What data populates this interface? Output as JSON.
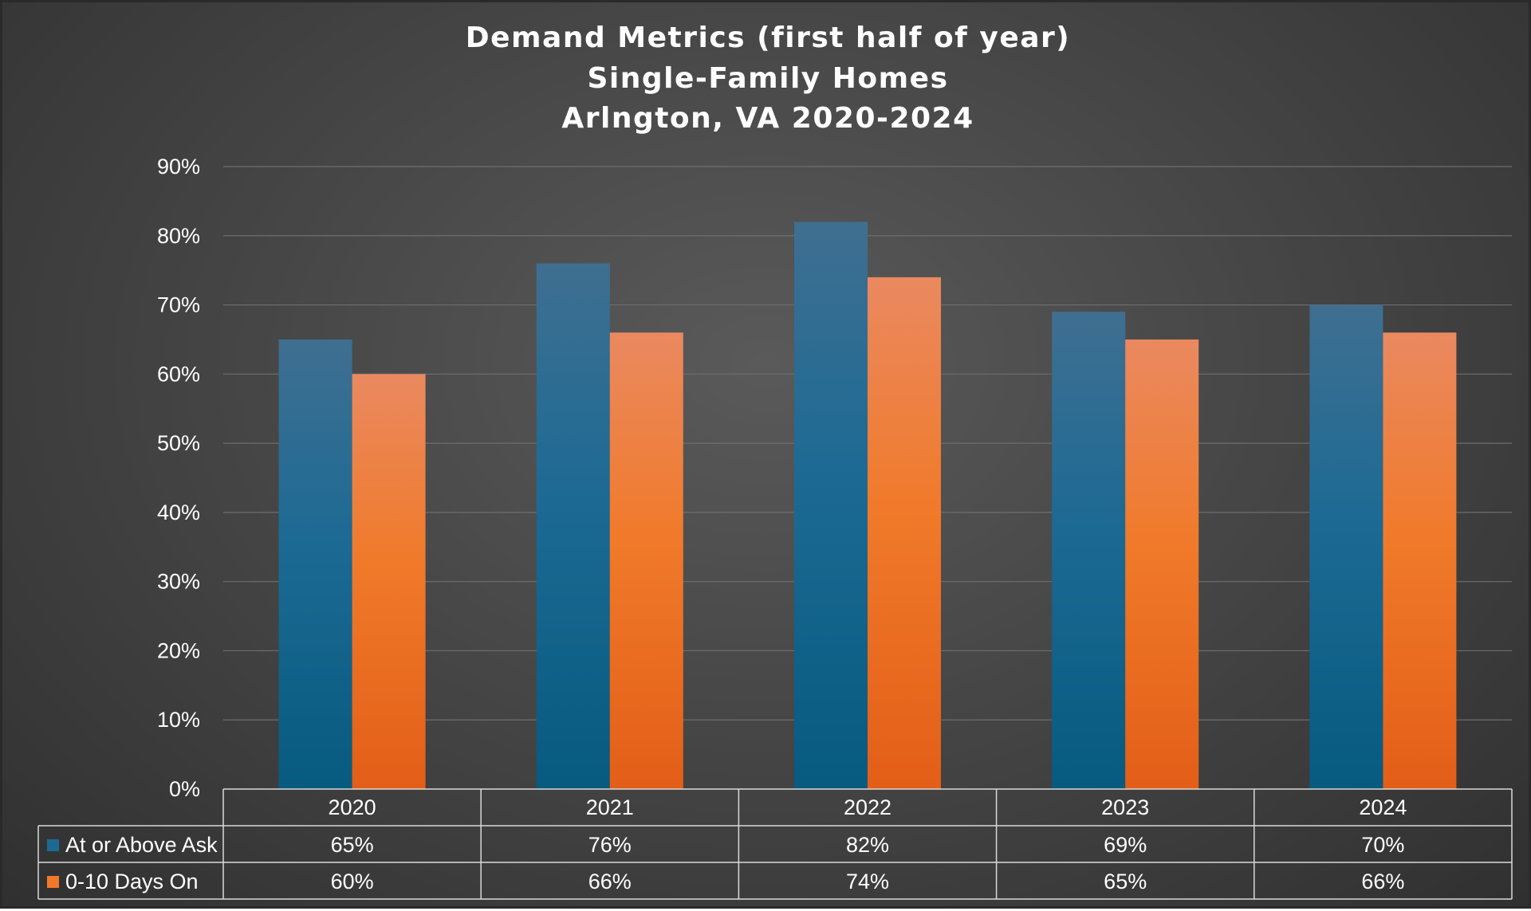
{
  "chart_data": {
    "type": "bar",
    "title": [
      "Demand Metrics (first half of year)",
      "Single-Family Homes",
      "Arlngton, VA 2020-2024"
    ],
    "categories": [
      "2020",
      "2021",
      "2022",
      "2023",
      "2024"
    ],
    "series": [
      {
        "name": "At or Above Ask",
        "values": [
          65,
          76,
          82,
          69,
          70
        ],
        "labels": [
          "65%",
          "76%",
          "82%",
          "69%",
          "70%"
        ],
        "color": "#1c6a94",
        "color_light": "#3f6f91",
        "color_dark": "#075a80"
      },
      {
        "name": "0-10 Days On",
        "values": [
          60,
          66,
          74,
          65,
          66
        ],
        "labels": [
          "60%",
          "66%",
          "74%",
          "65%",
          "66%"
        ],
        "color": "#f07a2a",
        "color_light": "#ea8960",
        "color_dark": "#e35e18"
      }
    ],
    "ylim": [
      0,
      90
    ],
    "yticks": [
      "0%",
      "10%",
      "20%",
      "30%",
      "40%",
      "50%",
      "60%",
      "70%",
      "80%",
      "90%"
    ],
    "xlabel": "",
    "ylabel": "",
    "grid": true,
    "legend": "data-table-below"
  }
}
